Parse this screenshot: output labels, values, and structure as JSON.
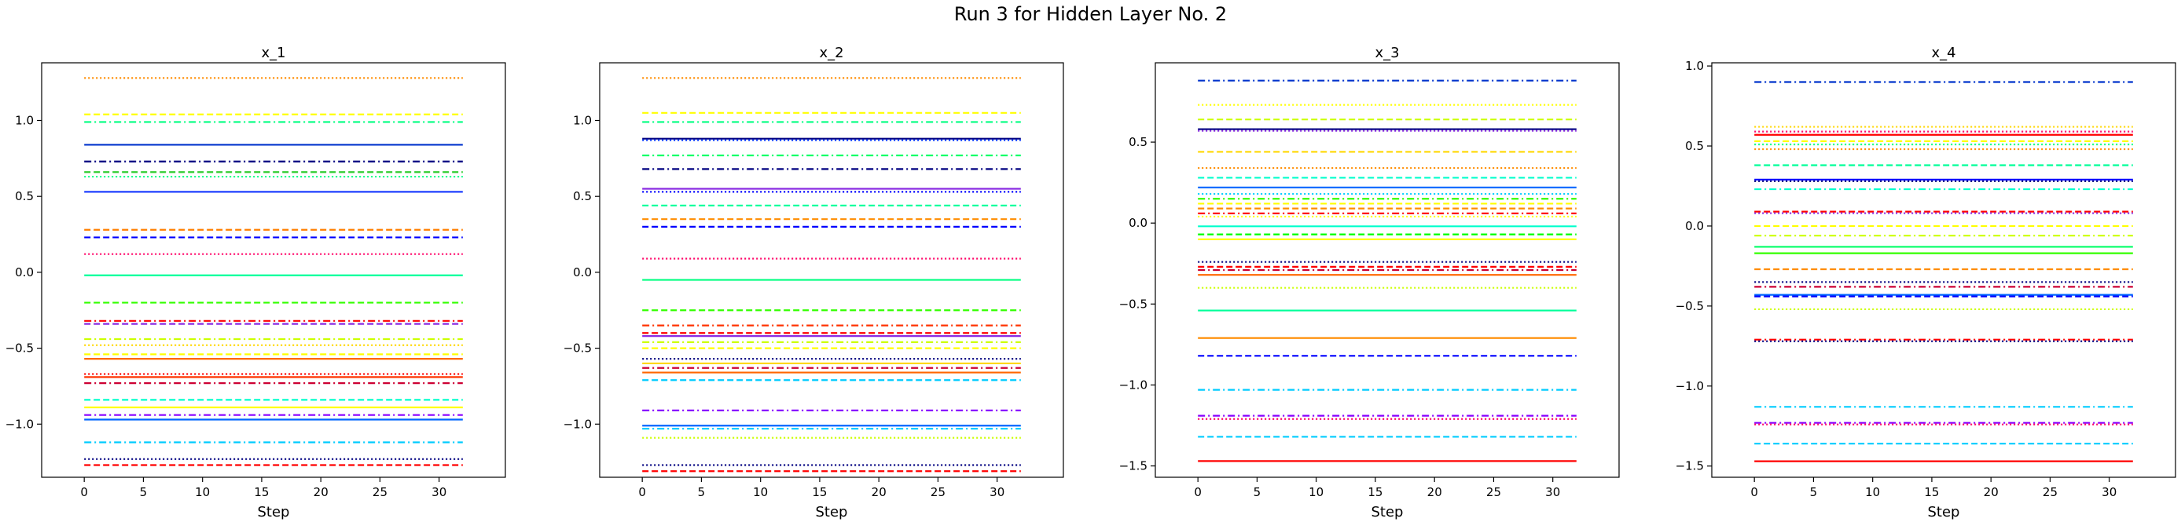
{
  "figure": {
    "title": "Run 3 for Hidden Layer No. 2"
  },
  "chart_data": [
    {
      "type": "line",
      "title": "x_1",
      "xlabel": "Step",
      "ylabel": "",
      "xlim": [
        -3.6,
        35.6
      ],
      "ylim": [
        -1.35,
        1.38
      ],
      "x_range": [
        0,
        32
      ],
      "xticks": [
        0,
        5,
        10,
        15,
        20,
        25,
        30
      ],
      "yticks": [
        -1.0,
        -0.5,
        0.0,
        0.5,
        1.0
      ],
      "xtick_labels": [
        "0",
        "5",
        "10",
        "15",
        "20",
        "25",
        "30"
      ],
      "ytick_labels": [
        "−1.0",
        "−0.5",
        "0.0",
        "0.5",
        "1.0"
      ],
      "grid": false,
      "series": [
        {
          "value": 1.28,
          "color": "#ff8c00",
          "style": "dotted"
        },
        {
          "value": 1.04,
          "color": "#ffff00",
          "style": "dashed"
        },
        {
          "value": 0.99,
          "color": "#00ff80",
          "style": "dashdot"
        },
        {
          "value": 0.84,
          "color": "#0033cc",
          "style": "solid"
        },
        {
          "value": 0.73,
          "color": "#000080",
          "style": "dashdot"
        },
        {
          "value": 0.66,
          "color": "#32cd32",
          "style": "dashed"
        },
        {
          "value": 0.63,
          "color": "#00ff80",
          "style": "dotted"
        },
        {
          "value": 0.53,
          "color": "#1f3fff",
          "style": "solid"
        },
        {
          "value": 0.28,
          "color": "#ff7f00",
          "style": "dashed"
        },
        {
          "value": 0.23,
          "color": "#0000ff",
          "style": "dashed"
        },
        {
          "value": 0.12,
          "color": "#ff0066",
          "style": "dotted"
        },
        {
          "value": -0.02,
          "color": "#00ff99",
          "style": "solid"
        },
        {
          "value": -0.2,
          "color": "#33ff00",
          "style": "dashed"
        },
        {
          "value": -0.32,
          "color": "#ff0000",
          "style": "dashdot"
        },
        {
          "value": -0.34,
          "color": "#8a2be2",
          "style": "dashed"
        },
        {
          "value": -0.44,
          "color": "#ccff00",
          "style": "dashdot"
        },
        {
          "value": -0.48,
          "color": "#ffd700",
          "style": "dotted"
        },
        {
          "value": -0.54,
          "color": "#ffff00",
          "style": "dashed"
        },
        {
          "value": -0.57,
          "color": "#ff6600",
          "style": "solid"
        },
        {
          "value": -0.67,
          "color": "#ff0000",
          "style": "dotted"
        },
        {
          "value": -0.69,
          "color": "#ff3300",
          "style": "solid"
        },
        {
          "value": -0.73,
          "color": "#cc0033",
          "style": "dashdot"
        },
        {
          "value": -0.84,
          "color": "#00ffcc",
          "style": "dashed"
        },
        {
          "value": -0.89,
          "color": "#ffff00",
          "style": "solid"
        },
        {
          "value": -0.94,
          "color": "#8800ff",
          "style": "dashdot"
        },
        {
          "value": -0.97,
          "color": "#0066ff",
          "style": "solid"
        },
        {
          "value": -1.12,
          "color": "#00ccff",
          "style": "dashdot"
        },
        {
          "value": -1.23,
          "color": "#000080",
          "style": "dotted"
        },
        {
          "value": -1.27,
          "color": "#ff0000",
          "style": "dashed"
        }
      ]
    },
    {
      "type": "line",
      "title": "x_2",
      "xlabel": "Step",
      "ylabel": "",
      "xlim": [
        -3.6,
        35.6
      ],
      "ylim": [
        -1.35,
        1.38
      ],
      "x_range": [
        0,
        32
      ],
      "xticks": [
        0,
        5,
        10,
        15,
        20,
        25,
        30
      ],
      "yticks": [
        -1.0,
        -0.5,
        0.0,
        0.5,
        1.0
      ],
      "xtick_labels": [
        "0",
        "5",
        "10",
        "15",
        "20",
        "25",
        "30"
      ],
      "ytick_labels": [
        "−1.0",
        "−0.5",
        "0.0",
        "0.5",
        "1.0"
      ],
      "grid": false,
      "series": [
        {
          "value": 1.28,
          "color": "#ff8c00",
          "style": "dotted"
        },
        {
          "value": 1.05,
          "color": "#ffff00",
          "style": "dashed"
        },
        {
          "value": 0.99,
          "color": "#00ff80",
          "style": "dashdot"
        },
        {
          "value": 0.88,
          "color": "#000080",
          "style": "solid"
        },
        {
          "value": 0.87,
          "color": "#0033ff",
          "style": "dotted"
        },
        {
          "value": 0.77,
          "color": "#00ff66",
          "style": "dashdot"
        },
        {
          "value": 0.68,
          "color": "#000080",
          "style": "dashdot"
        },
        {
          "value": 0.55,
          "color": "#8a2be2",
          "style": "solid"
        },
        {
          "value": 0.53,
          "color": "#0000ff",
          "style": "dotted"
        },
        {
          "value": 0.44,
          "color": "#00ff99",
          "style": "dashed"
        },
        {
          "value": 0.35,
          "color": "#ff8c00",
          "style": "dashed"
        },
        {
          "value": 0.3,
          "color": "#0000ff",
          "style": "dashed"
        },
        {
          "value": 0.09,
          "color": "#ff0066",
          "style": "dotted"
        },
        {
          "value": -0.05,
          "color": "#00ff80",
          "style": "solid"
        },
        {
          "value": -0.25,
          "color": "#33ff00",
          "style": "dashed"
        },
        {
          "value": -0.35,
          "color": "#ff3300",
          "style": "dashdot"
        },
        {
          "value": -0.4,
          "color": "#ff0000",
          "style": "dashed"
        },
        {
          "value": -0.42,
          "color": "#8a2be2",
          "style": "solid"
        },
        {
          "value": -0.46,
          "color": "#ccff00",
          "style": "dashdot"
        },
        {
          "value": -0.5,
          "color": "#ffff00",
          "style": "dashed"
        },
        {
          "value": -0.57,
          "color": "#000080",
          "style": "dotted"
        },
        {
          "value": -0.6,
          "color": "#ffd700",
          "style": "solid"
        },
        {
          "value": -0.63,
          "color": "#cc0033",
          "style": "dashdot"
        },
        {
          "value": -0.66,
          "color": "#ff6600",
          "style": "solid"
        },
        {
          "value": -0.71,
          "color": "#00ccff",
          "style": "dashed"
        },
        {
          "value": -0.91,
          "color": "#8800ff",
          "style": "dashdot"
        },
        {
          "value": -1.01,
          "color": "#0066ff",
          "style": "solid"
        },
        {
          "value": -1.03,
          "color": "#00ccff",
          "style": "dashdot"
        },
        {
          "value": -1.09,
          "color": "#ccff00",
          "style": "dotted"
        },
        {
          "value": -1.27,
          "color": "#000080",
          "style": "dotted"
        },
        {
          "value": -1.31,
          "color": "#ff0000",
          "style": "dashed"
        }
      ]
    },
    {
      "type": "line",
      "title": "x_3",
      "xlabel": "Step",
      "ylabel": "",
      "xlim": [
        -3.6,
        35.6
      ],
      "ylim": [
        -1.57,
        0.99
      ],
      "x_range": [
        0,
        32
      ],
      "xticks": [
        0,
        5,
        10,
        15,
        20,
        25,
        30
      ],
      "yticks": [
        -1.5,
        -1.0,
        -0.5,
        0.0,
        0.5
      ],
      "xtick_labels": [
        "0",
        "5",
        "10",
        "15",
        "20",
        "25",
        "30"
      ],
      "ytick_labels": [
        "−1.5",
        "−1.0",
        "−0.5",
        "0.0",
        "0.5"
      ],
      "grid": false,
      "series": [
        {
          "value": 0.88,
          "color": "#0033cc",
          "style": "dashdot"
        },
        {
          "value": 0.73,
          "color": "#ffff00",
          "style": "dotted"
        },
        {
          "value": 0.64,
          "color": "#ccff00",
          "style": "dashed"
        },
        {
          "value": 0.58,
          "color": "#000080",
          "style": "solid"
        },
        {
          "value": 0.57,
          "color": "#8a2be2",
          "style": "dotted"
        },
        {
          "value": 0.44,
          "color": "#ffd700",
          "style": "dashed"
        },
        {
          "value": 0.34,
          "color": "#ff8c00",
          "style": "dotted"
        },
        {
          "value": 0.28,
          "color": "#00ffcc",
          "style": "dashed"
        },
        {
          "value": 0.22,
          "color": "#0066ff",
          "style": "solid"
        },
        {
          "value": 0.18,
          "color": "#00ccff",
          "style": "dotted"
        },
        {
          "value": 0.15,
          "color": "#33ff00",
          "style": "dashdot"
        },
        {
          "value": 0.12,
          "color": "#ffff00",
          "style": "dashed"
        },
        {
          "value": 0.09,
          "color": "#ff8c00",
          "style": "dashed"
        },
        {
          "value": 0.06,
          "color": "#ff0000",
          "style": "dashdot"
        },
        {
          "value": 0.04,
          "color": "#ffff00",
          "style": "dotted"
        },
        {
          "value": -0.02,
          "color": "#00ffcc",
          "style": "solid"
        },
        {
          "value": -0.07,
          "color": "#00ff00",
          "style": "dashed"
        },
        {
          "value": -0.1,
          "color": "#ffff00",
          "style": "solid"
        },
        {
          "value": -0.24,
          "color": "#000080",
          "style": "dotted"
        },
        {
          "value": -0.27,
          "color": "#ff0000",
          "style": "dashed"
        },
        {
          "value": -0.29,
          "color": "#cc0033",
          "style": "dashdot"
        },
        {
          "value": -0.32,
          "color": "#ff6600",
          "style": "solid"
        },
        {
          "value": -0.4,
          "color": "#ccff00",
          "style": "dotted"
        },
        {
          "value": -0.54,
          "color": "#00ff99",
          "style": "solid"
        },
        {
          "value": -0.71,
          "color": "#ff8c00",
          "style": "solid"
        },
        {
          "value": -0.82,
          "color": "#0000ff",
          "style": "dashed"
        },
        {
          "value": -1.03,
          "color": "#00ccff",
          "style": "dashdot"
        },
        {
          "value": -1.19,
          "color": "#8800ff",
          "style": "dashdot"
        },
        {
          "value": -1.21,
          "color": "#ff0066",
          "style": "dotted"
        },
        {
          "value": -1.32,
          "color": "#00ccff",
          "style": "dashed"
        },
        {
          "value": -1.47,
          "color": "#ff0000",
          "style": "solid"
        }
      ]
    },
    {
      "type": "line",
      "title": "x_4",
      "xlabel": "Step",
      "ylabel": "",
      "xlim": [
        -3.6,
        35.6
      ],
      "ylim": [
        -1.57,
        1.02
      ],
      "x_range": [
        0,
        32
      ],
      "xticks": [
        0,
        5,
        10,
        15,
        20,
        25,
        30
      ],
      "yticks": [
        -1.5,
        -1.0,
        -0.5,
        0.0,
        0.5,
        1.0
      ],
      "xtick_labels": [
        "0",
        "5",
        "10",
        "15",
        "20",
        "25",
        "30"
      ],
      "ytick_labels": [
        "−1.5",
        "−1.0",
        "−0.5",
        "0.0",
        "0.5",
        "1.0"
      ],
      "grid": false,
      "series": [
        {
          "value": 0.9,
          "color": "#0033cc",
          "style": "dashdot"
        },
        {
          "value": 0.62,
          "color": "#ffd700",
          "style": "dotted"
        },
        {
          "value": 0.59,
          "color": "#ff0066",
          "style": "dotted"
        },
        {
          "value": 0.57,
          "color": "#ff0000",
          "style": "solid"
        },
        {
          "value": 0.53,
          "color": "#ffff00",
          "style": "dashed"
        },
        {
          "value": 0.51,
          "color": "#00ff80",
          "style": "dotted"
        },
        {
          "value": 0.48,
          "color": "#ff8c00",
          "style": "dotted"
        },
        {
          "value": 0.38,
          "color": "#00ff99",
          "style": "dashed"
        },
        {
          "value": 0.29,
          "color": "#0000ff",
          "style": "solid"
        },
        {
          "value": 0.28,
          "color": "#000080",
          "style": "dotted"
        },
        {
          "value": 0.23,
          "color": "#00ffcc",
          "style": "dashdot"
        },
        {
          "value": 0.09,
          "color": "#ff0000",
          "style": "dashed"
        },
        {
          "value": 0.08,
          "color": "#8a2be2",
          "style": "dotted"
        },
        {
          "value": 0.0,
          "color": "#ffff00",
          "style": "dashed"
        },
        {
          "value": -0.06,
          "color": "#ccff00",
          "style": "dashdot"
        },
        {
          "value": -0.13,
          "color": "#00ff66",
          "style": "solid"
        },
        {
          "value": -0.17,
          "color": "#33ff00",
          "style": "solid"
        },
        {
          "value": -0.27,
          "color": "#ff8c00",
          "style": "dashed"
        },
        {
          "value": -0.35,
          "color": "#000080",
          "style": "dotted"
        },
        {
          "value": -0.38,
          "color": "#cc0033",
          "style": "dashdot"
        },
        {
          "value": -0.43,
          "color": "#0066ff",
          "style": "solid"
        },
        {
          "value": -0.44,
          "color": "#0000ff",
          "style": "dashed"
        },
        {
          "value": -0.52,
          "color": "#ccff00",
          "style": "dotted"
        },
        {
          "value": -0.71,
          "color": "#ff0000",
          "style": "dashdot"
        },
        {
          "value": -0.72,
          "color": "#000080",
          "style": "dotted"
        },
        {
          "value": -1.13,
          "color": "#00ccff",
          "style": "dashdot"
        },
        {
          "value": -1.23,
          "color": "#8800ff",
          "style": "dashdot"
        },
        {
          "value": -1.24,
          "color": "#ff0066",
          "style": "dotted"
        },
        {
          "value": -1.36,
          "color": "#00ccff",
          "style": "dashed"
        },
        {
          "value": -1.47,
          "color": "#ff0000",
          "style": "solid"
        }
      ]
    }
  ]
}
